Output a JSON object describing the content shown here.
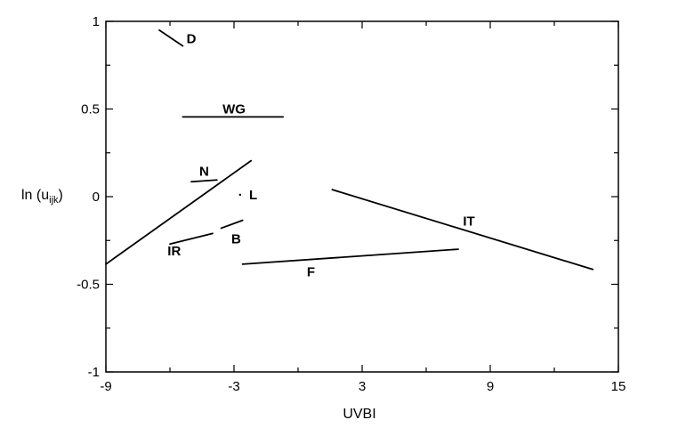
{
  "chart_data": {
    "type": "line",
    "title": "",
    "xlabel": "UVBI",
    "ylabel": "ln (u",
    "ylabel_subscript": "ijk",
    "ylabel_close": ")",
    "xlim": [
      -9,
      15
    ],
    "ylim": [
      -1,
      1
    ],
    "xticks": [
      -9,
      -3,
      3,
      9,
      15
    ],
    "xtick_labels": [
      "-9",
      "-3",
      "3",
      "9",
      "15"
    ],
    "yticks": [
      1,
      0.5,
      0,
      -0.5,
      -1
    ],
    "ytick_labels": [
      "1",
      "0.5",
      "0",
      "-0.5",
      "-1"
    ],
    "x_minor_step": 3,
    "y_minor_step": 0.25,
    "grid": false,
    "legend": "none",
    "series": [
      {
        "name": "D",
        "x": [
          -6.5,
          -5.4
        ],
        "y": [
          0.95,
          0.86
        ],
        "label_x": -5.0,
        "label_y": 0.9
      },
      {
        "name": "WG",
        "x": [
          -5.4,
          -0.7
        ],
        "y": [
          0.455,
          0.455
        ],
        "label_x": -3.0,
        "label_y": 0.5
      },
      {
        "name": "N",
        "x": [
          -5.0,
          -3.8
        ],
        "y": [
          0.085,
          0.095
        ],
        "label_x": -4.4,
        "label_y": 0.145
      },
      {
        "name": "L",
        "x": [
          -9.0,
          -2.2
        ],
        "y": [
          -0.385,
          0.205
        ],
        "label_x": -2.1,
        "label_y": 0.01
      },
      {
        "name": "IR",
        "x": [
          -6.0,
          -4.0
        ],
        "y": [
          -0.27,
          -0.21
        ],
        "label_x": -5.8,
        "label_y": -0.31
      },
      {
        "name": "B",
        "x": [
          -3.6,
          -2.6
        ],
        "y": [
          -0.18,
          -0.135
        ],
        "label_x": -2.9,
        "label_y": -0.24
      },
      {
        "name": "F",
        "x": [
          -2.6,
          7.5
        ],
        "y": [
          -0.385,
          -0.3
        ],
        "label_x": 0.6,
        "label_y": -0.43
      },
      {
        "name": "IT",
        "x": [
          1.6,
          13.8
        ],
        "y": [
          0.04,
          -0.415
        ],
        "label_x": 8.0,
        "label_y": -0.14
      }
    ],
    "annotations": [
      {
        "text": "·",
        "x": -2.7,
        "y": 0.01
      }
    ]
  }
}
